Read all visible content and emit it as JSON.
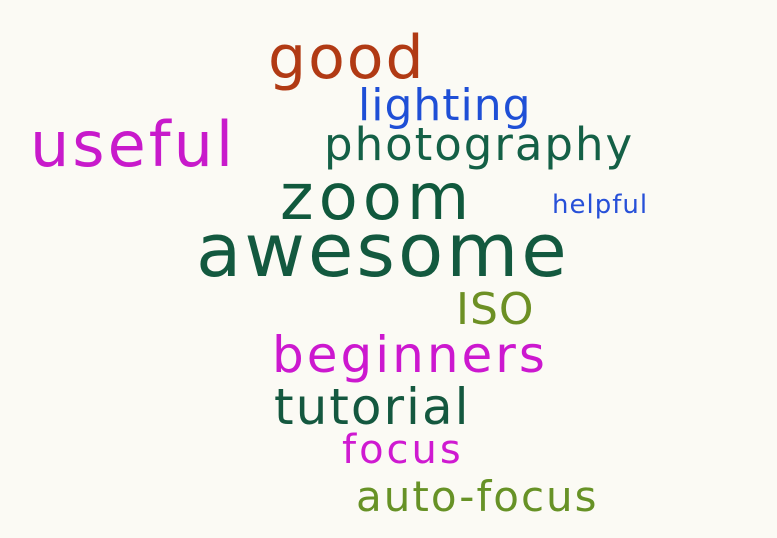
{
  "background_color": "#fbfaf4",
  "words": [
    {
      "text": "good",
      "color": "#b13a14"
    },
    {
      "text": "lighting",
      "color": "#1f4fd6"
    },
    {
      "text": "useful",
      "color": "#c81acb"
    },
    {
      "text": "photography",
      "color": "#146046"
    },
    {
      "text": "zoom",
      "color": "#10593d"
    },
    {
      "text": "helpful",
      "color": "#2750d8"
    },
    {
      "text": "awesome",
      "color": "#13593f"
    },
    {
      "text": "ISO",
      "color": "#6d9024"
    },
    {
      "text": "beginners",
      "color": "#cc18cf"
    },
    {
      "text": "tutorial",
      "color": "#14583f"
    },
    {
      "text": "focus",
      "color": "#cf1ad1"
    },
    {
      "text": "auto-focus",
      "color": "#679226"
    }
  ]
}
